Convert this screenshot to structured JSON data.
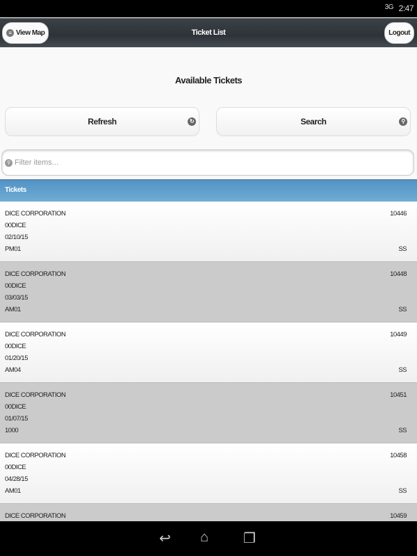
{
  "status_bar": {
    "time": "2:47",
    "signal": "3G"
  },
  "header": {
    "title": "Ticket List",
    "view_map": "View Map",
    "logout": "Logout"
  },
  "main": {
    "heading": "Available Tickets",
    "refresh": "Refresh",
    "search": "Search",
    "filter_placeholder": "Filter items...",
    "divider": "Tickets"
  },
  "tickets": [
    {
      "company": "DICE CORPORATION",
      "code": "00DICE",
      "date": "02/10/15",
      "zone": "PM01",
      "number": "10446",
      "tech": "SS"
    },
    {
      "company": "DICE CORPORATION",
      "code": "00DICE",
      "date": "03/03/15",
      "zone": "AM01",
      "number": "10448",
      "tech": "SS"
    },
    {
      "company": "DICE CORPORATION",
      "code": "00DICE",
      "date": "01/20/15",
      "zone": "AM04",
      "number": "10449",
      "tech": "SS"
    },
    {
      "company": "DICE CORPORATION",
      "code": "00DICE",
      "date": "01/07/15",
      "zone": "1000",
      "number": "10451",
      "tech": "SS"
    },
    {
      "company": "DICE CORPORATION",
      "code": "00DICE",
      "date": "04/28/15",
      "zone": "AM01",
      "number": "10458",
      "tech": "SS"
    },
    {
      "company": "DICE CORPORATION",
      "number": "10459"
    }
  ]
}
